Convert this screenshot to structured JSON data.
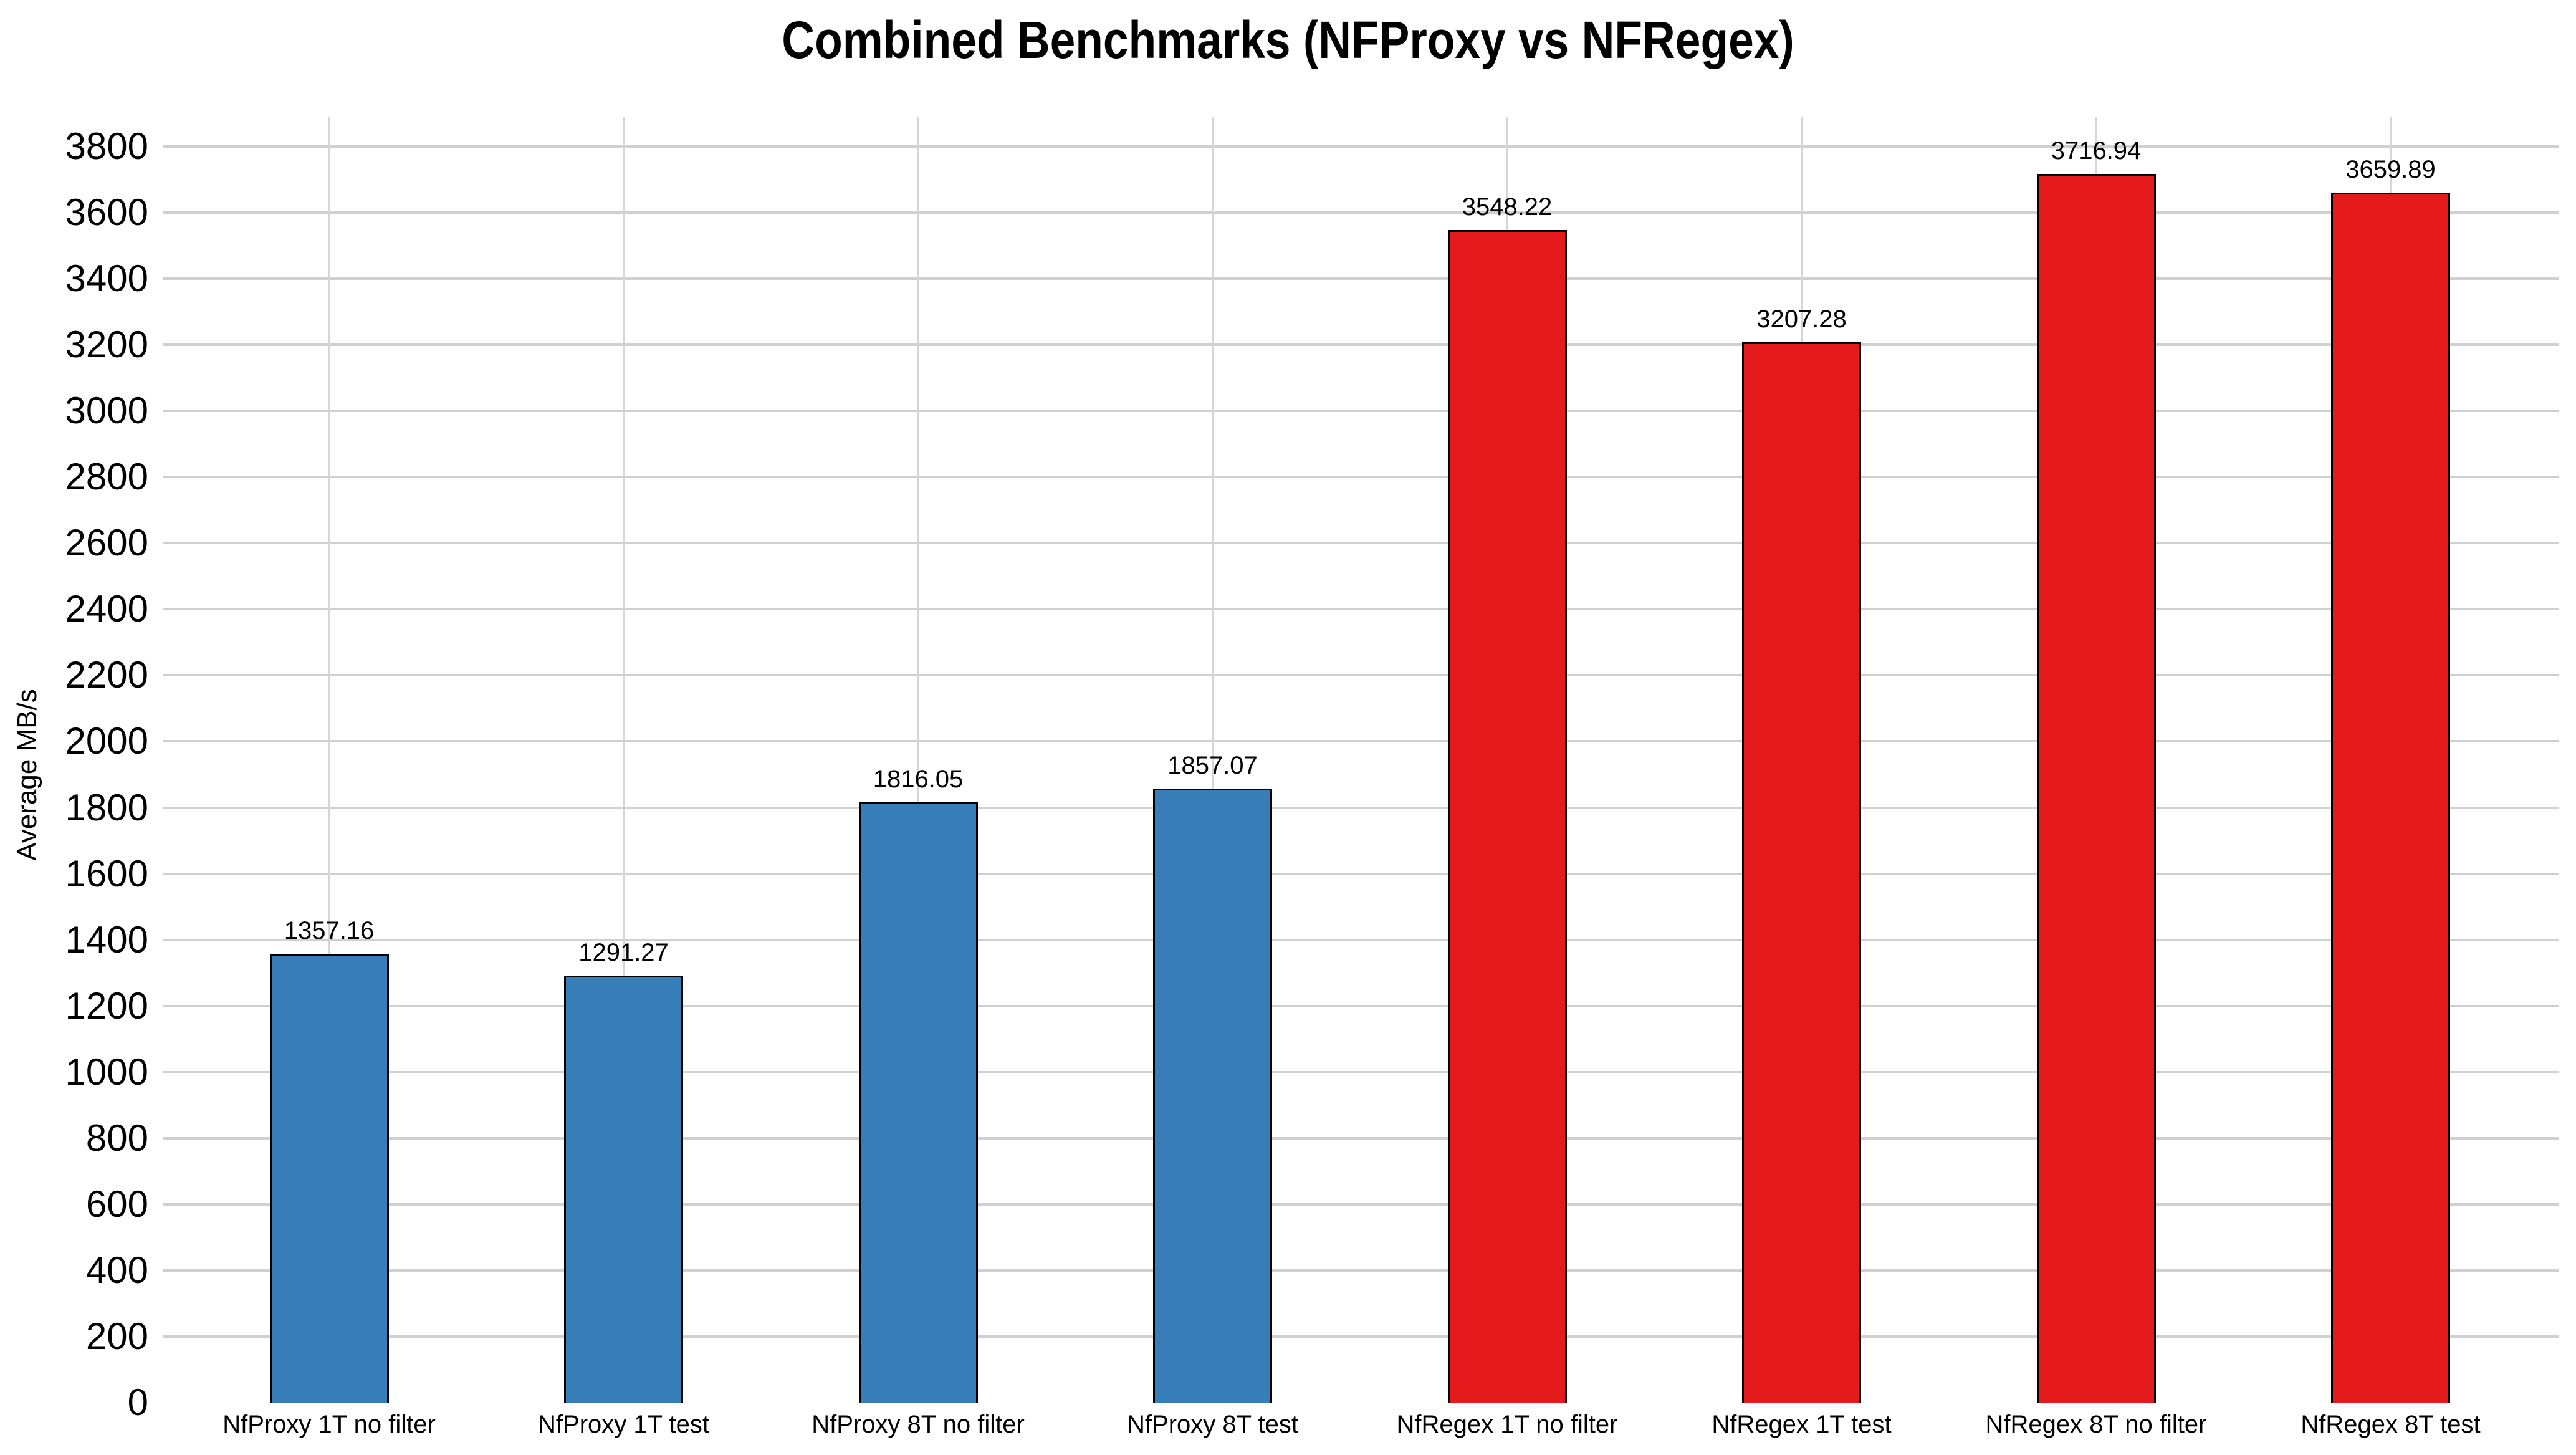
{
  "chart_data": {
    "type": "bar",
    "title": "Combined Benchmarks (NFProxy vs NFRegex)",
    "xlabel": "",
    "ylabel": "Average MB/s",
    "categories": [
      "NfProxy 1T no filter",
      "NfProxy 1T test",
      "NfProxy 8T no filter",
      "NfProxy 8T test",
      "NfRegex 1T no filter",
      "NfRegex 1T test",
      "NfRegex 8T no filter",
      "NfRegex 8T test"
    ],
    "values": [
      1357.16,
      1291.27,
      1816.05,
      1857.07,
      3548.22,
      3207.28,
      3716.94,
      3659.89
    ],
    "value_labels": [
      "1357.16",
      "1291.27",
      "1816.05",
      "1857.07",
      "3548.22",
      "3207.28",
      "3716.94",
      "3659.89"
    ],
    "bar_colors": [
      "#377eb8",
      "#377eb8",
      "#377eb8",
      "#377eb8",
      "#e41a1c",
      "#e41a1c",
      "#e41a1c",
      "#e41a1c"
    ],
    "groups": [
      {
        "name": "NFProxy",
        "color": "#377eb8"
      },
      {
        "name": "NFRegex",
        "color": "#e41a1c"
      }
    ],
    "bar_edge_color": "#000000",
    "ylim": [
      0,
      3800
    ],
    "ytick_step": 200,
    "ytick_labels": [
      "0",
      "200",
      "400",
      "600",
      "800",
      "1000",
      "1200",
      "1400",
      "1600",
      "1800",
      "2000",
      "2200",
      "2400",
      "2600",
      "2800",
      "3000",
      "3200",
      "3400",
      "3600",
      "3800"
    ],
    "grid": true,
    "gridline_at_zero": false,
    "legend_position": "none"
  },
  "colors": {
    "background": "#ffffff",
    "grid_horizontal": "#d0d0d0",
    "grid_vertical": "#d6d6d6",
    "text": "#000000"
  }
}
